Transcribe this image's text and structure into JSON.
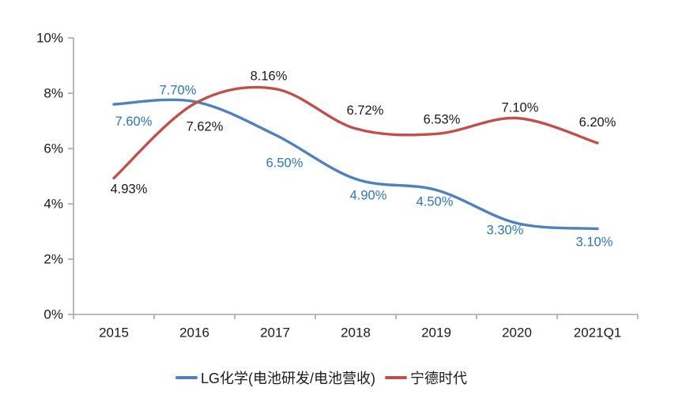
{
  "chart_data": {
    "type": "line",
    "title": "",
    "xlabel": "",
    "ylabel": "",
    "grid": false,
    "smoothed": true,
    "legend_position": "bottom",
    "background": "#ffffff",
    "axis_color": "#a6a6a6",
    "text_color": "#1a1a1a",
    "categories": [
      "2015",
      "2016",
      "2017",
      "2018",
      "2019",
      "2020",
      "2021Q1"
    ],
    "y_axis": {
      "min": 0,
      "max": 10,
      "step": 2,
      "ticks": [
        "0%",
        "2%",
        "4%",
        "6%",
        "8%",
        "10%"
      ]
    },
    "series": [
      {
        "name": "LG化学(电池研发/电池营收)",
        "color": "#4F81BD",
        "label_color": "#2E75B6",
        "values": [
          7.6,
          7.7,
          6.5,
          4.9,
          4.5,
          3.3,
          3.1
        ],
        "labels": [
          "7.60%",
          "7.70%",
          "6.50%",
          "4.90%",
          "4.50%",
          "3.30%",
          "3.10%"
        ],
        "label_offsets": [
          [
            25,
            22
          ],
          [
            -21,
            -14
          ],
          [
            12,
            36
          ],
          [
            16,
            21
          ],
          [
            -2,
            15
          ],
          [
            -15,
            9
          ],
          [
            -4,
            17
          ]
        ]
      },
      {
        "name": "宁德时代",
        "color": "#C0504D",
        "label_color": "#1A1A1A",
        "values": [
          4.93,
          7.62,
          8.16,
          6.72,
          6.53,
          7.1,
          6.2
        ],
        "labels": [
          "4.93%",
          "7.62%",
          "8.16%",
          "6.72%",
          "6.53%",
          "7.10%",
          "6.20%"
        ],
        "label_offsets": [
          [
            19,
            14
          ],
          [
            13,
            29
          ],
          [
            -8,
            -16
          ],
          [
            12,
            -23
          ],
          [
            7,
            -18
          ],
          [
            4,
            -13
          ],
          [
            0,
            -26
          ]
        ]
      }
    ]
  },
  "legend": {
    "items": [
      {
        "label": "LG化学(电池研发/电池营收)",
        "color": "#4F81BD"
      },
      {
        "label": "宁德时代",
        "color": "#C0504D"
      }
    ]
  }
}
